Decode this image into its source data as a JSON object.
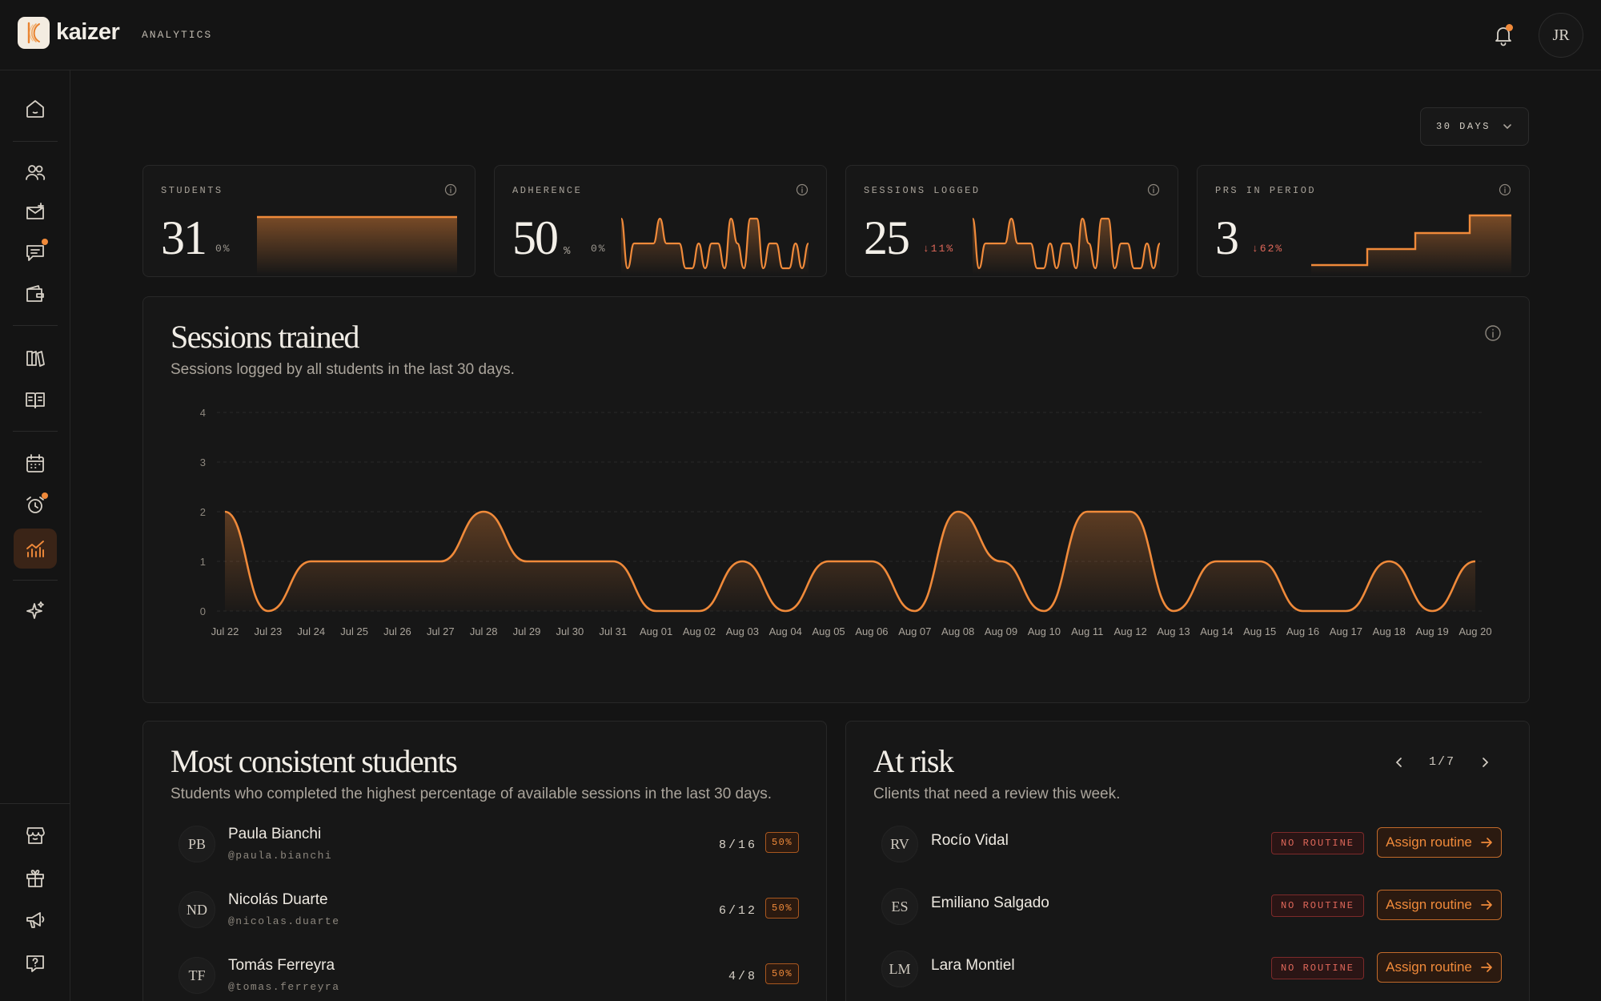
{
  "app": {
    "brand": "kaizer",
    "section": "ANALYTICS",
    "user_initials": "JR"
  },
  "filters": {
    "range_label": "30 DAYS"
  },
  "sidebar": {
    "items": [
      {
        "name": "home-icon"
      },
      {
        "name": "students-icon"
      },
      {
        "name": "invite-icon"
      },
      {
        "name": "messages-icon"
      },
      {
        "name": "wallet-icon"
      },
      {
        "name": "library-icon"
      },
      {
        "name": "guide-icon"
      },
      {
        "name": "calendar-icon"
      },
      {
        "name": "alarm-icon"
      },
      {
        "name": "analytics-icon",
        "active": true
      },
      {
        "name": "sparkle-icon"
      },
      {
        "name": "store-icon"
      },
      {
        "name": "gift-icon"
      },
      {
        "name": "announce-icon"
      },
      {
        "name": "help-icon"
      }
    ]
  },
  "stats": [
    {
      "label": "STUDENTS",
      "value": "31",
      "unit": "",
      "delta": "0%",
      "trend": "flat",
      "spark_type": "flat"
    },
    {
      "label": "ADHERENCE",
      "value": "50",
      "unit": "%",
      "delta": "0%",
      "trend": "flat",
      "spark_type": "line"
    },
    {
      "label": "SESSIONS LOGGED",
      "value": "25",
      "unit": "",
      "delta": "↓11%",
      "trend": "down",
      "spark_type": "line"
    },
    {
      "label": "PRS IN PERIOD",
      "value": "3",
      "unit": "",
      "delta": "↓62%",
      "trend": "down",
      "spark_type": "step"
    }
  ],
  "sessions": {
    "title": "Sessions trained",
    "subtitle": "Sessions logged by all students in the last 30 days."
  },
  "chart_data": {
    "type": "area",
    "title": "Sessions trained",
    "x": [
      "Jul 22",
      "Jul 23",
      "Jul 24",
      "Jul 25",
      "Jul 26",
      "Jul 27",
      "Jul 28",
      "Jul 29",
      "Jul 30",
      "Jul 31",
      "Aug 01",
      "Aug 02",
      "Aug 03",
      "Aug 04",
      "Aug 05",
      "Aug 06",
      "Aug 07",
      "Aug 08",
      "Aug 09",
      "Aug 10",
      "Aug 11",
      "Aug 12",
      "Aug 13",
      "Aug 14",
      "Aug 15",
      "Aug 16",
      "Aug 17",
      "Aug 18",
      "Aug 19",
      "Aug 20"
    ],
    "values": [
      2,
      0,
      1,
      1,
      1,
      1,
      2,
      1,
      1,
      1,
      0,
      0,
      1,
      0,
      1,
      1,
      0,
      2,
      1,
      0,
      2,
      2,
      0,
      1,
      1,
      0,
      0,
      1,
      0,
      1
    ],
    "yticks": [
      "0",
      "1",
      "2",
      "3",
      "4"
    ],
    "ylim": [
      0,
      4
    ],
    "grid": true,
    "color": "#f08a3a"
  },
  "consistent": {
    "title": "Most consistent students",
    "subtitle": "Students who completed the highest percentage of available sessions in the last 30 days.",
    "rows": [
      {
        "initials": "PB",
        "name": "Paula Bianchi",
        "handle": "@paula.bianchi",
        "count": "8/16",
        "pct": "50%"
      },
      {
        "initials": "ND",
        "name": "Nicolás Duarte",
        "handle": "@nicolas.duarte",
        "count": "6/12",
        "pct": "50%"
      },
      {
        "initials": "TF",
        "name": "Tomás Ferreyra",
        "handle": "@tomas.ferreyra",
        "count": "4/8",
        "pct": "50%"
      }
    ]
  },
  "at_risk": {
    "title": "At risk",
    "subtitle": "Clients that need a review this week.",
    "page": "1/7",
    "badge_label": "NO ROUTINE",
    "action_label": "Assign routine",
    "rows": [
      {
        "initials": "RV",
        "name": "Rocío Vidal"
      },
      {
        "initials": "ES",
        "name": "Emiliano Salgado"
      },
      {
        "initials": "LM",
        "name": "Lara Montiel"
      }
    ]
  },
  "colors": {
    "accent": "#f08a3a",
    "danger": "#e0685a",
    "bg": "#141414",
    "card": "#171717"
  }
}
